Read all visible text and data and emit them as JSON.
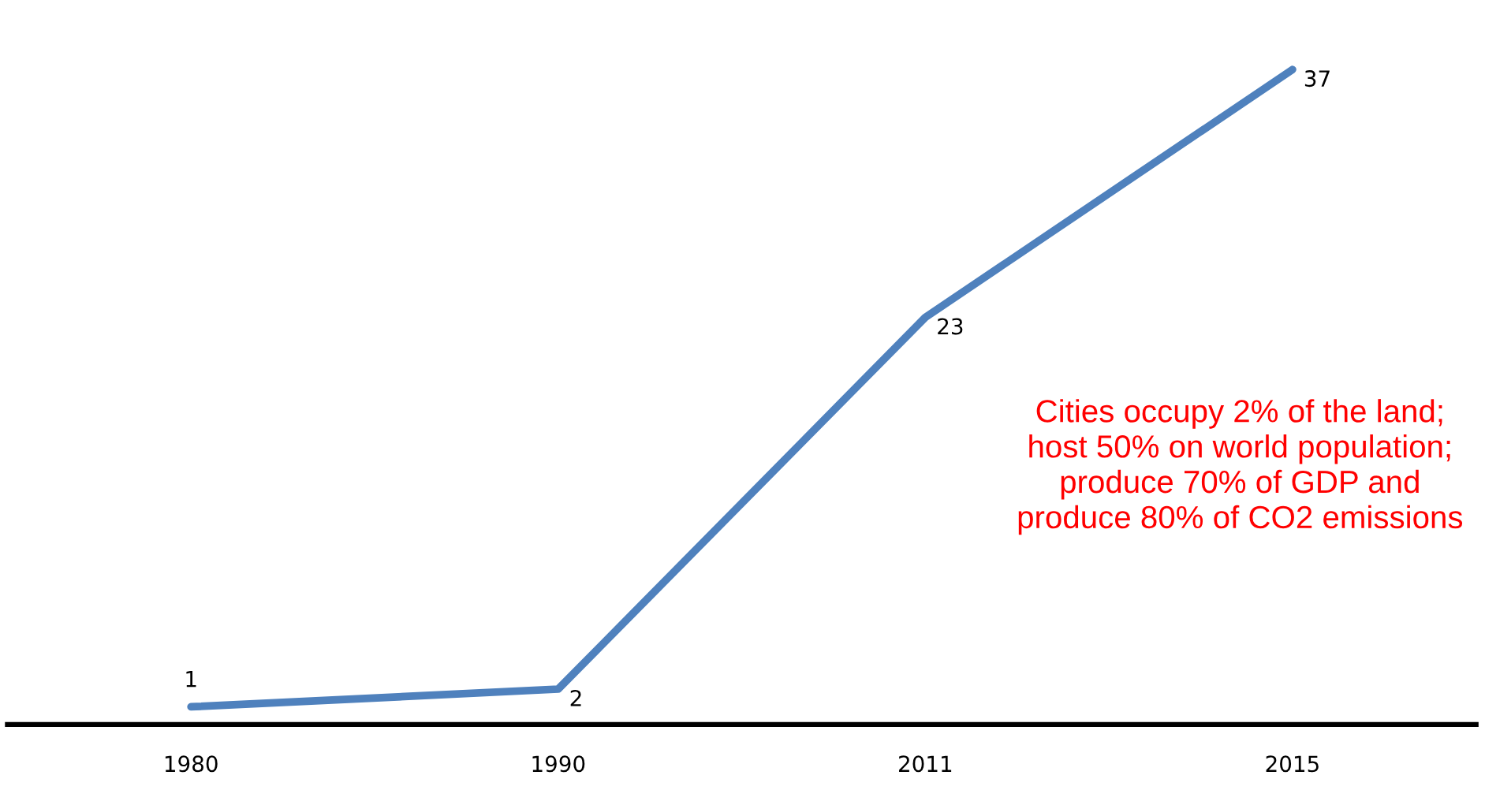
{
  "chart_data": {
    "type": "line",
    "relative": false,
    "categories": [
      "1980",
      "1990",
      "2011",
      "2015"
    ],
    "series": [
      {
        "color": "#4f81bd",
        "values": [
          1,
          2,
          23,
          37
        ]
      }
    ],
    "data_labels": true,
    "grid": false,
    "marker": "none",
    "line_style": "solid",
    "annotations": [
      "Cities occupy 2% of the land;\nhost 50% on world population;\nproduce 70% of GDP and\nproduce 80% of CO2 emissions"
    ]
  }
}
